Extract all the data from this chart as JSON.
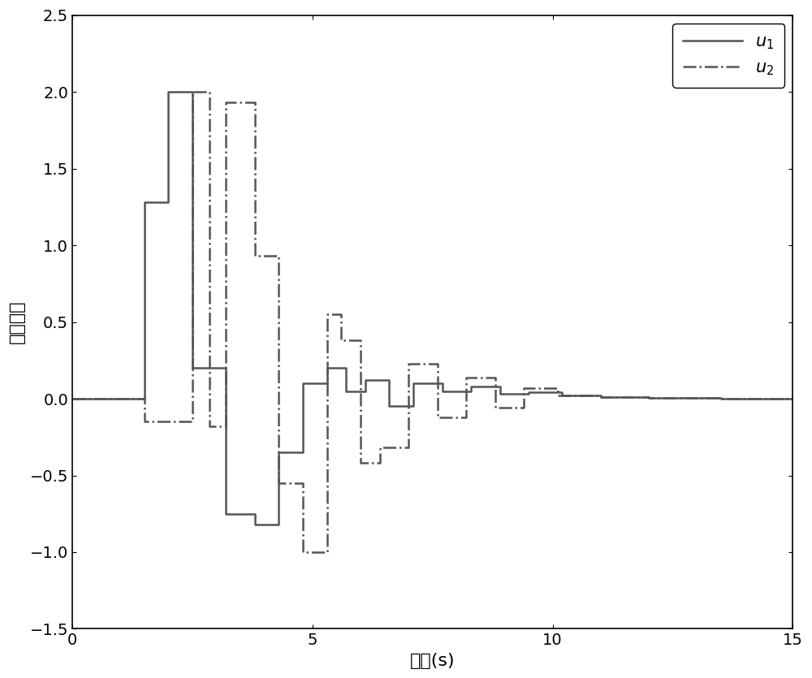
{
  "title": "",
  "xlabel": "时间(s)",
  "ylabel": "控制输入",
  "xlim": [
    0,
    15
  ],
  "ylim": [
    -1.5,
    2.5
  ],
  "xticks": [
    0,
    5,
    10,
    15
  ],
  "yticks": [
    -1.5,
    -1.0,
    -0.5,
    0.0,
    0.5,
    1.0,
    1.5,
    2.0,
    2.5
  ],
  "line_color": "#555555",
  "u1_x": [
    0,
    1.5,
    1.5,
    2.0,
    2.0,
    2.5,
    2.5,
    3.2,
    3.2,
    3.8,
    3.8,
    4.3,
    4.3,
    4.8,
    4.8,
    5.3,
    5.3,
    5.7,
    5.7,
    6.1,
    6.1,
    6.6,
    6.6,
    7.1,
    7.1,
    7.7,
    7.7,
    8.3,
    8.3,
    8.9,
    8.9,
    9.5,
    9.5,
    10.2,
    10.2,
    11.0,
    11.0,
    12.0,
    12.0,
    13.5,
    13.5,
    15.0
  ],
  "u1_y": [
    0.0,
    0.0,
    1.28,
    1.28,
    2.0,
    2.0,
    0.2,
    0.2,
    -0.75,
    -0.75,
    -0.82,
    -0.82,
    -0.35,
    -0.35,
    0.1,
    0.1,
    0.2,
    0.2,
    0.05,
    0.05,
    0.12,
    0.12,
    -0.05,
    -0.05,
    0.1,
    0.1,
    0.05,
    0.05,
    0.08,
    0.08,
    0.03,
    0.03,
    0.04,
    0.04,
    0.02,
    0.02,
    0.01,
    0.01,
    0.005,
    0.005,
    0.0,
    0.0
  ],
  "u2_x": [
    0,
    1.5,
    1.5,
    2.5,
    2.5,
    2.85,
    2.85,
    3.2,
    3.2,
    3.8,
    3.8,
    4.3,
    4.3,
    4.8,
    4.8,
    5.3,
    5.3,
    5.6,
    5.6,
    6.0,
    6.0,
    6.4,
    6.4,
    7.0,
    7.0,
    7.6,
    7.6,
    8.2,
    8.2,
    8.8,
    8.8,
    9.4,
    9.4,
    10.1,
    10.1,
    11.0,
    11.0,
    12.0,
    12.0,
    13.5,
    13.5,
    15.0
  ],
  "u2_y": [
    0.0,
    0.0,
    -0.15,
    -0.15,
    2.0,
    2.0,
    -0.18,
    -0.18,
    1.93,
    1.93,
    0.93,
    0.93,
    -0.55,
    -0.55,
    -1.0,
    -1.0,
    0.55,
    0.55,
    0.38,
    0.38,
    -0.42,
    -0.42,
    -0.32,
    -0.32,
    0.23,
    0.23,
    -0.12,
    -0.12,
    0.14,
    0.14,
    -0.06,
    -0.06,
    0.07,
    0.07,
    0.02,
    0.02,
    0.01,
    0.01,
    0.003,
    0.003,
    0.0,
    0.0
  ],
  "legend_u1": "$u_1$",
  "legend_u2": "$u_2$"
}
